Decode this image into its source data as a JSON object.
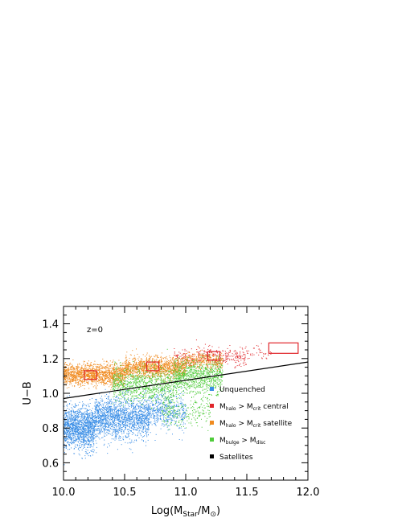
{
  "chart_data": {
    "type": "scatter",
    "title": "",
    "annotation": "z=0",
    "xlabel": {
      "prefix": "Log(M",
      "sub1": "Star",
      "mid": "/M",
      "sub2": "⊙",
      "suffix": ")"
    },
    "ylabel": "U−B",
    "xlim": [
      10.0,
      12.0
    ],
    "ylim": [
      0.5,
      1.5
    ],
    "x_ticks": [
      "10.0",
      "10.5",
      "11.0",
      "11.5",
      "12.0"
    ],
    "y_ticks": [
      "0.6",
      "0.8",
      "1.0",
      "1.2",
      "1.4"
    ],
    "grid": false,
    "legend_placement": "bottom-right",
    "series": [
      {
        "name": "Unquenched",
        "color": "#3a8ee6",
        "main": "Unquenched",
        "sub1": "",
        "mid": "",
        "sub2": "",
        "tail": "",
        "clusters": [
          {
            "x_range": [
              10.0,
              10.25
            ],
            "y_center": 0.8,
            "y_spread": 0.1,
            "count": 1400
          },
          {
            "x_range": [
              10.25,
              10.7
            ],
            "y_center": 0.86,
            "y_spread": 0.1,
            "count": 1700
          },
          {
            "x_range": [
              10.7,
              11.0
            ],
            "y_center": 0.9,
            "y_spread": 0.09,
            "count": 500
          }
        ]
      },
      {
        "name": "M_halo > M_crit central",
        "color": "#e0262b",
        "main": "M",
        "sub1": "halo",
        "mid": " > M",
        "sub2": "crit",
        "tail": " central",
        "clusters": [
          {
            "x_range": [
              10.9,
              11.5
            ],
            "y_center": 1.21,
            "y_spread": 0.05,
            "count": 350
          },
          {
            "x_range": [
              11.5,
              11.7
            ],
            "y_center": 1.23,
            "y_spread": 0.04,
            "count": 40
          }
        ]
      },
      {
        "name": "M_halo > M_crit satellite",
        "color": "#f08a1f",
        "main": "M",
        "sub1": "halo",
        "mid": " > M",
        "sub2": "crit",
        "tail": " satellite",
        "clusters": [
          {
            "x_range": [
              10.0,
              10.5
            ],
            "y_center": 1.11,
            "y_spread": 0.05,
            "count": 1500
          },
          {
            "x_range": [
              10.5,
              11.0
            ],
            "y_center": 1.15,
            "y_spread": 0.05,
            "count": 1300
          },
          {
            "x_range": [
              11.0,
              11.3
            ],
            "y_center": 1.19,
            "y_spread": 0.04,
            "count": 350
          }
        ]
      },
      {
        "name": "M_bulge > M_disc",
        "color": "#4fcc3a",
        "main": "M",
        "sub1": "bulge",
        "mid": " > M",
        "sub2": "disc",
        "tail": "",
        "clusters": [
          {
            "x_range": [
              10.4,
              10.9
            ],
            "y_center": 1.05,
            "y_spread": 0.08,
            "count": 900
          },
          {
            "x_range": [
              10.9,
              11.3
            ],
            "y_center": 1.1,
            "y_spread": 0.08,
            "count": 900
          },
          {
            "x_range": [
              10.8,
              11.2
            ],
            "y_center": 0.9,
            "y_spread": 0.08,
            "count": 250
          }
        ]
      },
      {
        "name": "Satellites",
        "color": "#000000",
        "main": "Satellites",
        "sub1": "",
        "mid": "",
        "sub2": "",
        "tail": "",
        "clusters": []
      }
    ],
    "dividing_line": {
      "x": [
        10.0,
        12.0
      ],
      "y": [
        0.97,
        1.18
      ],
      "color": "#000000"
    },
    "boxes": [
      {
        "x0": 10.17,
        "x1": 10.27,
        "y0": 1.08,
        "y1": 1.13,
        "color": "#e0262b"
      },
      {
        "x0": 10.68,
        "x1": 10.78,
        "y0": 1.13,
        "y1": 1.18,
        "color": "#e0262b"
      },
      {
        "x0": 11.18,
        "x1": 11.28,
        "y0": 1.19,
        "y1": 1.24,
        "color": "#e0262b"
      },
      {
        "x0": 11.68,
        "x1": 11.92,
        "y0": 1.23,
        "y1": 1.29,
        "color": "#e0262b"
      }
    ]
  }
}
